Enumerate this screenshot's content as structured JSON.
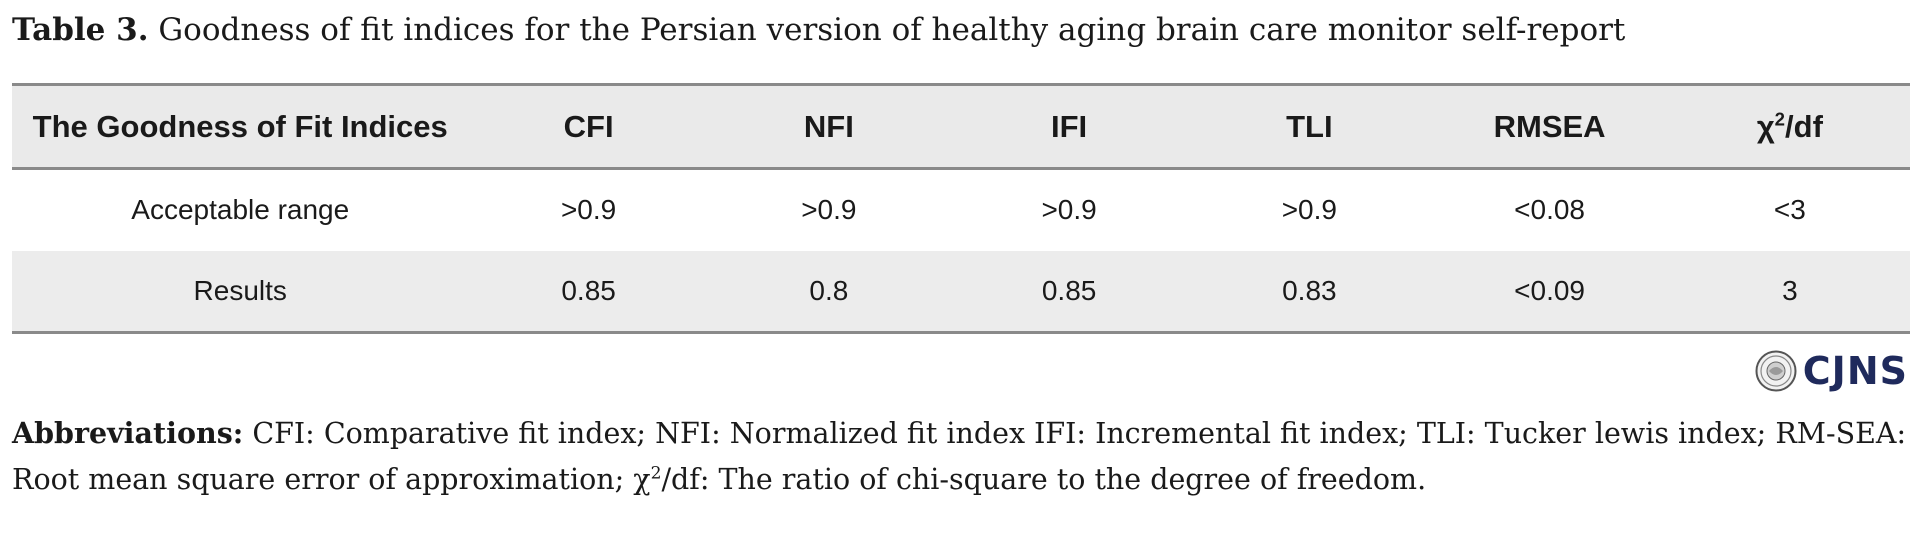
{
  "caption": {
    "label": "Table 3.",
    "text": " Goodness of fit indices for the Persian version of healthy aging brain care monitor self-report"
  },
  "table": {
    "headers": [
      "The Goodness of Fit Indices",
      "CFI",
      "NFI",
      "IFI",
      "TLI",
      "RMSEA"
    ],
    "last_header_prefix": "χ",
    "last_header_sup": "2",
    "last_header_suffix": "/df",
    "rows": [
      [
        "Acceptable range",
        ">0.9",
        ">0.9",
        ">0.9",
        ">0.9",
        "<0.08",
        "<3"
      ],
      [
        "Results",
        "0.85",
        "0.8",
        "0.85",
        "0.83",
        "<0.09",
        "3"
      ]
    ]
  },
  "brand": {
    "text": "CJNS",
    "color": "#1f2a5c"
  },
  "abbreviations": {
    "label": "Abbreviations:",
    "text_before_sup": " CFI: Comparative fit index; NFI: Normalized fit index IFI: Incremental fit index; TLI: Tucker lewis index; RM-SEA: Root mean square error of approximation; χ",
    "sup": "2",
    "text_after_sup": "/df: The ratio of chi-square to the degree of freedom."
  }
}
